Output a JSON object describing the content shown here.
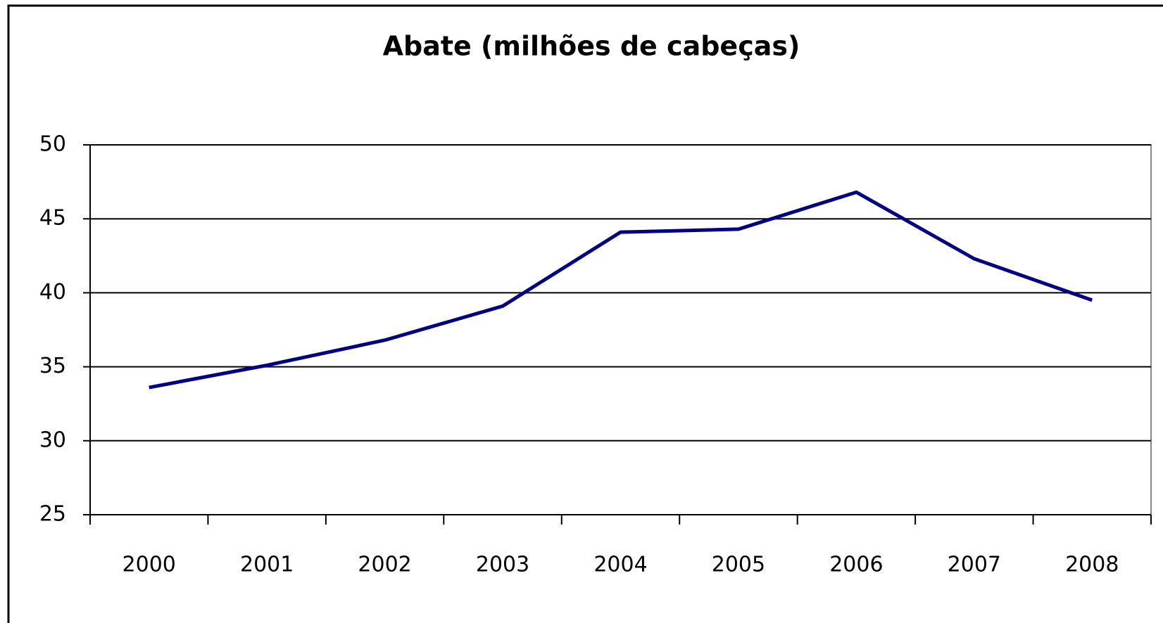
{
  "chart_data": {
    "type": "line",
    "title": "Abate (milhões de cabeças)",
    "categories": [
      "2000",
      "2001",
      "2002",
      "2003",
      "2004",
      "2005",
      "2006",
      "2007",
      "2008"
    ],
    "series": [
      {
        "name": "Abate",
        "color": "#000080",
        "values": [
          33.6,
          35.1,
          36.8,
          39.1,
          44.1,
          44.3,
          46.8,
          42.3,
          39.5
        ]
      }
    ],
    "ylim": [
      25,
      50
    ],
    "yticks": [
      25,
      30,
      35,
      40,
      45,
      50
    ],
    "grid": true
  }
}
